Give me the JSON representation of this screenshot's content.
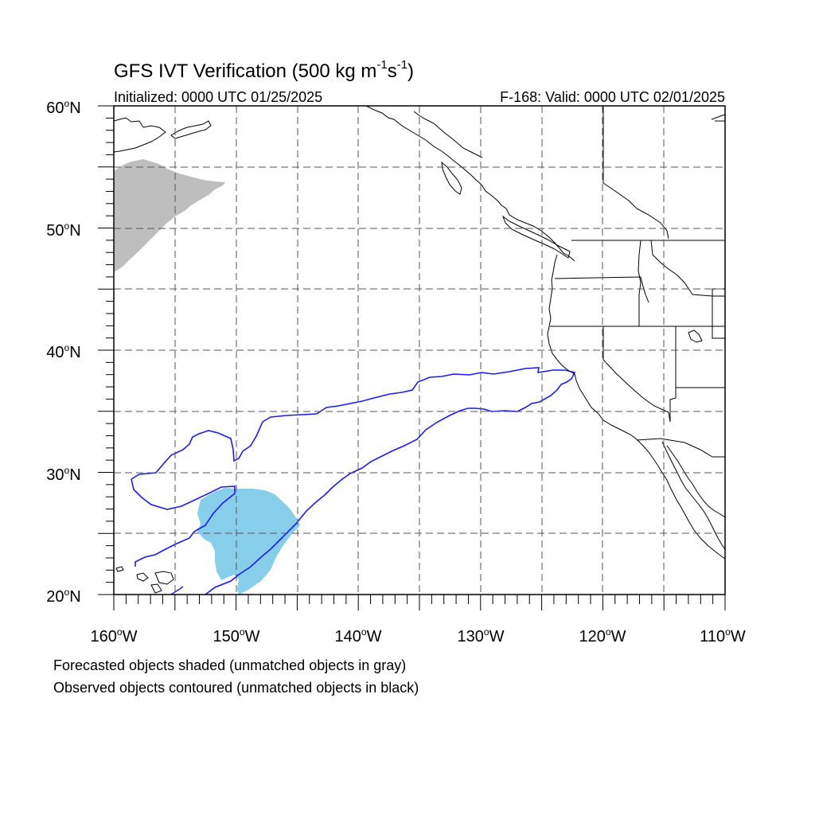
{
  "title": {
    "main": "GFS IVT Verification (500 kg m",
    "sup1": "-1",
    "mid": "s",
    "sup2": "-1",
    "end": ")"
  },
  "subtitle_left": "Initialized: 0000 UTC 01/25/2025",
  "subtitle_right": "F-168: Valid: 0000 UTC 02/01/2025",
  "axes": {
    "lon_labels": [
      "160",
      "150",
      "140",
      "130",
      "120",
      "110"
    ],
    "lon_suffix": "W",
    "lat_labels": [
      "60",
      "50",
      "40",
      "30",
      "20"
    ],
    "lat_suffix": "N",
    "degree_symbol": "o",
    "lon_range": [
      -160,
      -110
    ],
    "lat_range": [
      20,
      60
    ],
    "grid": "dashed, every 5 degrees"
  },
  "footer": {
    "line1": "Forecasted objects shaded (unmatched objects in gray)",
    "line2": "Observed objects contoured (unmatched objects in black)"
  },
  "colors": {
    "matched_forecast_fill": "#87ceeb",
    "unmatched_forecast_fill": "#bebebe",
    "matched_observed_contour": "#1a1aff",
    "coastline": "#000000",
    "grid": "#555555"
  }
}
